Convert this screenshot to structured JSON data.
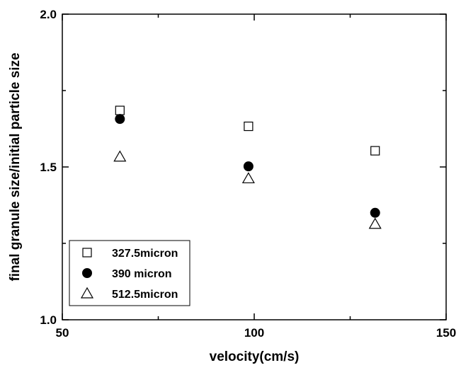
{
  "chart_data": {
    "type": "scatter",
    "xlabel": "velocity(cm/s)",
    "ylabel": "final granule size/initial particle size",
    "xlim": [
      50,
      150
    ],
    "ylim": [
      1.0,
      2.0
    ],
    "x_ticks": [
      50,
      100,
      150
    ],
    "x_tick_labels": [
      "50",
      "100",
      "150"
    ],
    "y_ticks": [
      1.0,
      1.5,
      2.0
    ],
    "y_tick_labels": [
      "1.0",
      "1.5",
      "2.0"
    ],
    "grid": false,
    "legend_position": "bottom-left",
    "series": [
      {
        "name": "327.5micron",
        "marker": "open-square",
        "x": [
          65,
          98.5,
          131.5
        ],
        "y": [
          1.685,
          1.633,
          1.553
        ]
      },
      {
        "name": "390 micron",
        "marker": "filled-circle",
        "x": [
          65,
          98.5,
          131.5
        ],
        "y": [
          1.657,
          1.502,
          1.35
        ]
      },
      {
        "name": "512.5micron",
        "marker": "open-triangle",
        "x": [
          65,
          98.5,
          131.5
        ],
        "y": [
          1.533,
          1.462,
          1.313
        ]
      }
    ]
  }
}
